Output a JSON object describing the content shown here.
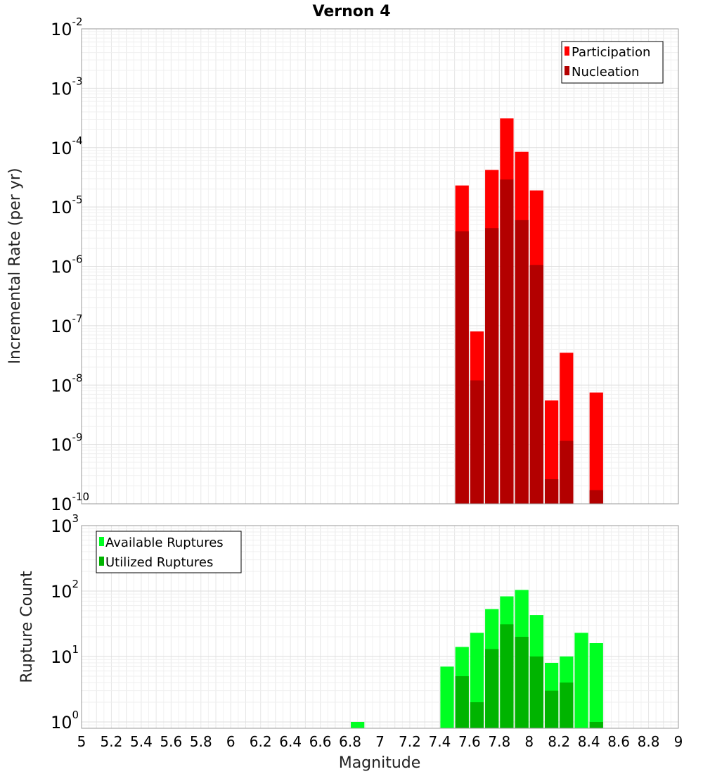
{
  "title": "Vernon 4",
  "colors": {
    "participation": "#ff0000",
    "nucleation": "#b30000",
    "available": "#00ff22",
    "utilized": "#00b400"
  },
  "chart_data": [
    {
      "type": "bar",
      "scale": "log",
      "ylabel": "Incremental Rate (per yr)",
      "ylim": [
        1e-10,
        0.01
      ],
      "ytick_base": "10",
      "ytick_exponents": [
        "-10",
        "-9",
        "-8",
        "-7",
        "-6",
        "-5",
        "-4",
        "-3",
        "-2"
      ],
      "legend": [
        "Participation",
        "Nucleation"
      ],
      "legend_position": "top-right",
      "x": [
        7.55,
        7.65,
        7.75,
        7.85,
        7.95,
        8.05,
        8.15,
        8.25,
        8.45
      ],
      "series": [
        {
          "name": "Participation",
          "values": [
            2.3e-05,
            8e-08,
            4.2e-05,
            0.00031,
            8.5e-05,
            1.9e-05,
            5.5e-09,
            3.5e-08,
            7.5e-09
          ]
        },
        {
          "name": "Nucleation",
          "values": [
            3.9e-06,
            1.2e-08,
            4.4e-06,
            2.9e-05,
            6e-06,
            1.05e-06,
            2.6e-10,
            1.15e-09,
            1.7e-10
          ]
        }
      ]
    },
    {
      "type": "bar",
      "scale": "log",
      "ylabel": "Rupture Count",
      "xlabel": "Magnitude",
      "ylim": [
        0.8,
        1000
      ],
      "ytick_base": "10",
      "ytick_exponents": [
        "0",
        "1",
        "2",
        "3"
      ],
      "legend": [
        "Available Ruptures",
        "Utilized Ruptures"
      ],
      "legend_position": "top-left",
      "xlim": [
        5,
        9
      ],
      "xticks": [
        "5",
        "5.2",
        "5.4",
        "5.6",
        "5.8",
        "6",
        "6.2",
        "6.4",
        "6.6",
        "6.8",
        "7",
        "7.2",
        "7.4",
        "7.6",
        "7.8",
        "8",
        "8.2",
        "8.4",
        "8.6",
        "8.8",
        "9"
      ],
      "x": [
        6.85,
        7.45,
        7.55,
        7.65,
        7.75,
        7.85,
        7.95,
        8.05,
        8.15,
        8.25,
        8.35,
        8.45
      ],
      "series": [
        {
          "name": "Available Ruptures",
          "values": [
            1,
            7,
            14,
            23,
            53,
            83,
            104,
            43,
            8,
            10,
            23,
            16
          ]
        },
        {
          "name": "Utilized Ruptures",
          "values": [
            0,
            0,
            5,
            2,
            13,
            31,
            20,
            10,
            3,
            4,
            0,
            1
          ]
        }
      ]
    }
  ]
}
